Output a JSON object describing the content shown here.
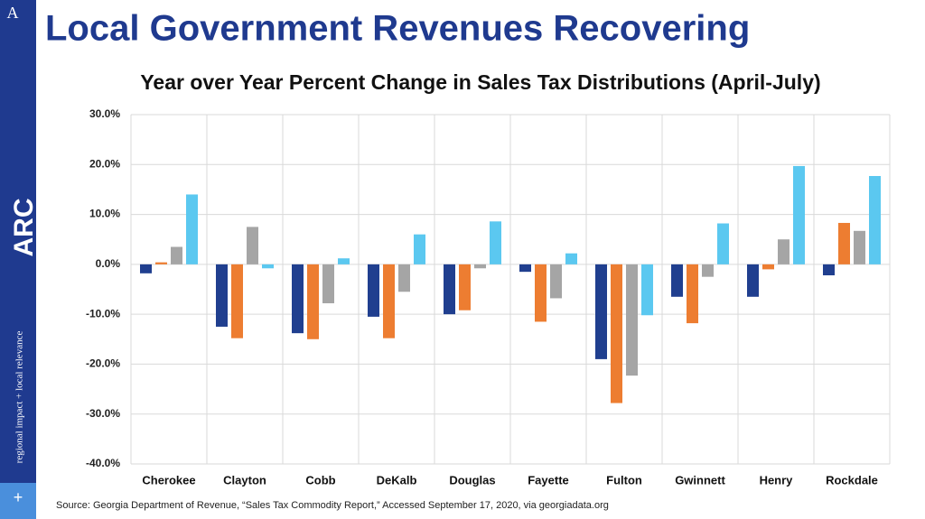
{
  "slide": {
    "title": "Local Government Revenues Recovering",
    "corner": "A",
    "logo": "ARC",
    "tagline": "regional impact + local relevance",
    "plus": "+"
  },
  "chart_data": {
    "type": "bar",
    "title": "Year over Year Percent Change in Sales Tax Distributions (April-July)",
    "source": "Source: Georgia Department of Revenue, “Sales Tax Commodity Report,” Accessed September 17, 2020, via georgiadata.org",
    "categories": [
      "Cherokee",
      "Clayton",
      "Cobb",
      "DeKalb",
      "Douglas",
      "Fayette",
      "Fulton",
      "Gwinnett",
      "Henry",
      "Rockdale"
    ],
    "series": [
      {
        "color": "#203f8f",
        "values": [
          -1.8,
          -12.5,
          -13.8,
          -10.5,
          -10.0,
          -1.5,
          -19.0,
          -6.5,
          -6.5,
          -2.2
        ]
      },
      {
        "color": "#ed7d31",
        "values": [
          0.4,
          -14.8,
          -15.0,
          -14.8,
          -9.2,
          -11.5,
          -27.8,
          -11.8,
          -1.0,
          8.3
        ]
      },
      {
        "color": "#a5a5a5",
        "values": [
          3.5,
          7.5,
          -7.8,
          -5.5,
          -0.8,
          -6.8,
          -22.3,
          -2.5,
          5.0,
          6.7
        ]
      },
      {
        "color": "#5bc8f0",
        "values": [
          14.0,
          -0.8,
          1.2,
          6.0,
          8.6,
          2.2,
          -10.2,
          8.2,
          19.7,
          17.7
        ]
      }
    ],
    "ylim": [
      -40,
      30
    ],
    "yticks": [
      {
        "value": -40,
        "label": "-40.0%"
      },
      {
        "value": -30,
        "label": "-30.0%"
      },
      {
        "value": -20,
        "label": "-20.0%"
      },
      {
        "value": -10,
        "label": "-10.0%"
      },
      {
        "value": 0,
        "label": "0.0%"
      },
      {
        "value": 10,
        "label": "10.0%"
      },
      {
        "value": 20,
        "label": "20.0%"
      },
      {
        "value": 30,
        "label": "30.0%"
      }
    ],
    "grid": true
  }
}
